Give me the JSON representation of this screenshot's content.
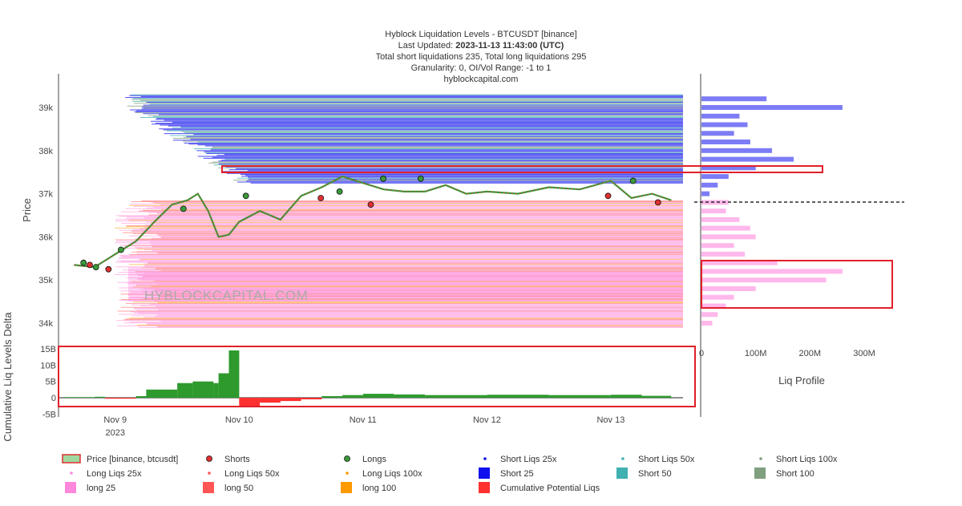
{
  "title": {
    "line1": "Hyblock Liquidation Levels - BTCUSDT [binance]",
    "line2_prefix": "Last Updated: ",
    "line2_bold": "2023-11-13 11:43:00 (UTC)",
    "line3": "Total short liquidations 235, Total long liquidations 295",
    "line4": "Granularity: 0, OI/Vol Range: -1 to 1",
    "line5": "hyblockcapital.com"
  },
  "watermark": "HYBLOCKCAPITAL.COM",
  "colors": {
    "price_up": "#3a9a3a",
    "price_down": "#e03030",
    "short25": "#1010ee",
    "short50": "#40b0b0",
    "short100": "#7f9f7f",
    "long25": "#ff88dd",
    "long50": "#ff5555",
    "long100": "#ff9900",
    "cum_pos": "#2e9a2e",
    "cum_neg": "#ff3030",
    "highlight": "#e0202a"
  },
  "chart_data": [
    {
      "type": "line",
      "name": "price",
      "title": "Hyblock Liquidation Levels - BTCUSDT [binance]",
      "xlabel": "",
      "ylabel": "Price",
      "x_ticks": [
        "Nov 9",
        "Nov 10",
        "Nov 11",
        "Nov 12",
        "Nov 13"
      ],
      "x_tick_sub": "2023",
      "x_range": [
        "2023-11-08 13:00",
        "2023-11-13 14:00"
      ],
      "y_ticks": [
        "34k",
        "35k",
        "36k",
        "37k",
        "38k",
        "39k"
      ],
      "ylim": [
        33800,
        39450
      ],
      "price_series": {
        "name": "Price [binance, btcusdt]",
        "x": [
          "2023-11-08 16:00",
          "2023-11-08 20:00",
          "2023-11-09 00:00",
          "2023-11-09 04:00",
          "2023-11-09 08:00",
          "2023-11-09 11:00",
          "2023-11-09 14:00",
          "2023-11-09 16:00",
          "2023-11-09 18:00",
          "2023-11-09 20:00",
          "2023-11-09 22:00",
          "2023-11-10 00:00",
          "2023-11-10 04:00",
          "2023-11-10 08:00",
          "2023-11-10 12:00",
          "2023-11-10 16:00",
          "2023-11-10 20:00",
          "2023-11-11 00:00",
          "2023-11-11 04:00",
          "2023-11-11 08:00",
          "2023-11-11 12:00",
          "2023-11-11 16:00",
          "2023-11-11 20:00",
          "2023-11-12 00:00",
          "2023-11-12 06:00",
          "2023-11-12 12:00",
          "2023-11-12 18:00",
          "2023-11-13 00:00",
          "2023-11-13 04:00",
          "2023-11-13 08:00",
          "2023-11-13 11:43"
        ],
        "y": [
          35350,
          35300,
          35600,
          35900,
          36400,
          36750,
          36850,
          37000,
          36600,
          36000,
          36050,
          36350,
          36600,
          36400,
          36950,
          37150,
          37400,
          37250,
          37100,
          37050,
          37050,
          37200,
          37000,
          37050,
          37000,
          37150,
          37100,
          37300,
          36900,
          37000,
          36850
        ]
      },
      "longs_markers_y": [
        35400,
        35300,
        35700,
        36650,
        36950,
        37050,
        37350,
        37350,
        37300
      ],
      "shorts_markers_y": [
        35350,
        35250,
        36900,
        36750,
        36950,
        36800
      ],
      "short_levels_min": 37250,
      "short_levels_max": 39300,
      "long_levels_min": 33900,
      "long_levels_max": 36850
    },
    {
      "type": "area",
      "name": "cumulative_delta",
      "ylabel": "Cumulative Liq Levels Delta",
      "y_ticks": [
        "-5B",
        "0",
        "5B",
        "10B",
        "15B"
      ],
      "ylim": [
        -5,
        16
      ],
      "x": [
        "2023-11-08 14:00",
        "2023-11-08 20:00",
        "2023-11-08 22:00",
        "2023-11-09 04:00",
        "2023-11-09 06:00",
        "2023-11-09 12:00",
        "2023-11-09 15:00",
        "2023-11-09 19:00",
        "2023-11-09 20:00",
        "2023-11-09 22:00",
        "2023-11-10 00:00",
        "2023-11-10 04:00",
        "2023-11-10 08:00",
        "2023-11-10 12:00",
        "2023-11-10 16:00",
        "2023-11-10 20:00",
        "2023-11-11 00:00",
        "2023-11-11 06:00",
        "2023-11-11 12:00",
        "2023-11-12 00:00",
        "2023-11-12 12:00",
        "2023-11-13 00:00",
        "2023-11-13 06:00",
        "2023-11-13 11:43"
      ],
      "y": [
        0.2,
        0.3,
        -0.3,
        0.5,
        2.5,
        4.5,
        5.0,
        4.5,
        7.5,
        14.5,
        -2.5,
        -1.5,
        -1.0,
        -0.5,
        0.5,
        0.8,
        1.2,
        1.0,
        0.8,
        0.9,
        0.8,
        0.9,
        0.6,
        0.6
      ]
    },
    {
      "type": "bar",
      "name": "liq_profile",
      "xlabel": "Liq Profile",
      "x_ticks": [
        "0",
        "100M",
        "200M",
        "300M"
      ],
      "xlim": [
        0,
        350
      ],
      "price_levels": [
        39200,
        39000,
        38800,
        38600,
        38400,
        38200,
        38000,
        37800,
        37600,
        37400,
        37200,
        37000,
        36800,
        36600,
        36400,
        36200,
        36000,
        35800,
        35600,
        35400,
        35200,
        35000,
        34800,
        34600,
        34400,
        34200,
        34000
      ],
      "short_values": [
        120,
        260,
        70,
        85,
        60,
        90,
        130,
        170,
        100,
        50,
        30,
        15,
        0,
        0,
        0,
        0,
        0,
        0,
        0,
        0,
        0,
        0,
        0,
        0,
        0,
        0,
        0
      ],
      "long_values": [
        0,
        0,
        0,
        0,
        0,
        0,
        0,
        0,
        0,
        0,
        0,
        0,
        50,
        45,
        70,
        90,
        100,
        60,
        80,
        140,
        260,
        230,
        100,
        60,
        45,
        30,
        20
      ]
    }
  ],
  "legend": [
    {
      "label": "Price [binance, btcusdt]",
      "icon": "price-line-icon"
    },
    {
      "label": "Shorts",
      "icon": "red-dot-icon"
    },
    {
      "label": "Longs",
      "icon": "green-dot-icon"
    },
    {
      "label": "Short Liqs 25x",
      "icon": "small-dot-icon"
    },
    {
      "label": "Short Liqs 50x",
      "icon": "small-dot-icon"
    },
    {
      "label": "Short Liqs 100x",
      "icon": "small-dot-icon"
    },
    {
      "label": "Long Liqs 25x",
      "icon": "small-dot-icon"
    },
    {
      "label": "Long Liqs 50x",
      "icon": "small-dot-icon"
    },
    {
      "label": "Long Liqs 100x",
      "icon": "small-dot-icon"
    },
    {
      "label": "Short 25",
      "icon": "square-icon"
    },
    {
      "label": "Short 50",
      "icon": "square-icon"
    },
    {
      "label": "Short 100",
      "icon": "square-icon"
    },
    {
      "label": "long 25",
      "icon": "square-icon"
    },
    {
      "label": "long 50",
      "icon": "square-icon"
    },
    {
      "label": "long 100",
      "icon": "square-icon"
    },
    {
      "label": "Cumulative Potential Liqs",
      "icon": "square-icon"
    }
  ]
}
